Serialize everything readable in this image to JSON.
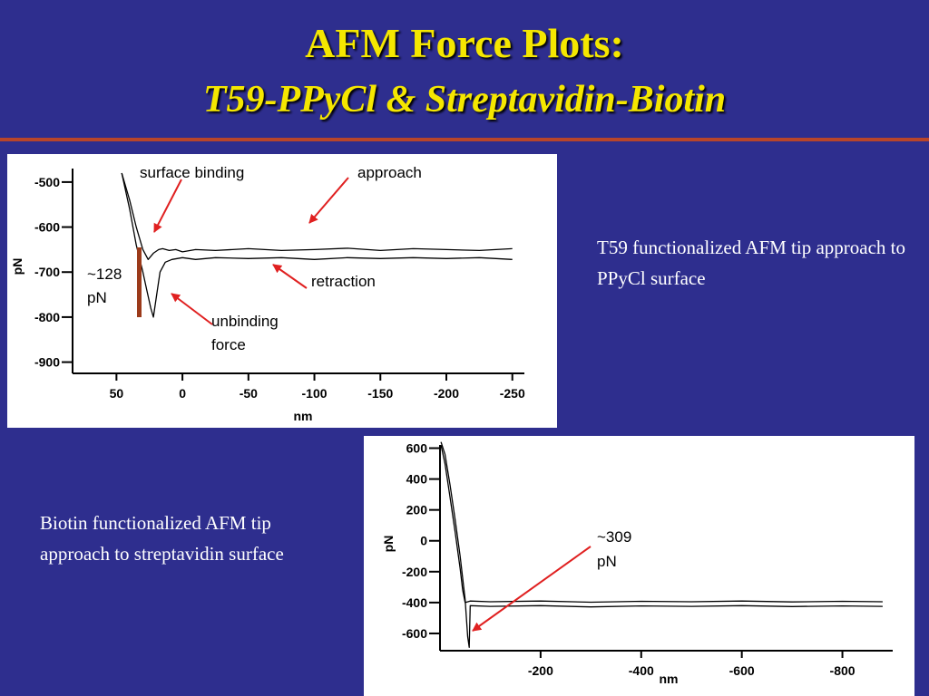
{
  "slide": {
    "title": "AFM Force Plots:",
    "subtitle": "T59-PPyCl & Streptavidin-Biotin"
  },
  "descriptions": {
    "top_right": "T59 functionalized AFM tip approach to PPyCl surface",
    "bottom_left": "Biotin functionalized AFM tip approach to streptavidin surface"
  },
  "colors": {
    "background": "#2e2e8e",
    "title": "#f5e700",
    "rule": "#b8452a",
    "arrow": "#e02020",
    "bracket": "#9b3a1a",
    "trace": "#000000"
  },
  "chart_data": [
    {
      "type": "line",
      "xlabel": "nm",
      "ylabel": "pN",
      "xlim": [
        75,
        -255
      ],
      "ylim": [
        -925,
        -470
      ],
      "x_ticks": [
        50,
        0,
        -50,
        -100,
        -150,
        -200,
        -250
      ],
      "x_tick_labels": [
        "50",
        "0",
        "-50",
        "-100",
        "-150",
        "-200",
        "-250"
      ],
      "y_ticks": [
        -500,
        -600,
        -700,
        -800,
        -900
      ],
      "y_tick_labels": [
        "-500",
        "-600",
        -700,
        "-800",
        "-900"
      ],
      "grid": false,
      "series": [
        {
          "x": [
            46,
            40,
            35,
            30,
            26,
            22,
            18,
            15,
            10,
            5,
            0,
            -10,
            -25,
            -50,
            -75,
            -100,
            -125,
            -150,
            -175,
            -200,
            -225,
            -250
          ],
          "y": [
            -480,
            -540,
            -600,
            -650,
            -672,
            -658,
            -650,
            -648,
            -652,
            -650,
            -655,
            -650,
            -652,
            -648,
            -652,
            -650,
            -647,
            -652,
            -648,
            -650,
            -652,
            -648
          ]
        },
        {
          "x": [
            46,
            40,
            35,
            30,
            27,
            24,
            22,
            20,
            17,
            13,
            8,
            0,
            -10,
            -25,
            -50,
            -75,
            -100,
            -125,
            -150,
            -175,
            -200,
            -225,
            -250
          ],
          "y": [
            -480,
            -560,
            -640,
            -700,
            -740,
            -780,
            -800,
            -760,
            -700,
            -678,
            -672,
            -668,
            -672,
            -668,
            -670,
            -668,
            -672,
            -668,
            -670,
            -668,
            -670,
            -668,
            -672
          ]
        }
      ],
      "annotations": [
        {
          "text": "surface binding"
        },
        {
          "text": "approach"
        },
        {
          "text": "retraction"
        },
        {
          "text": "unbinding"
        },
        {
          "text": "force"
        },
        {
          "text": "~128"
        },
        {
          "text": "pN"
        }
      ]
    },
    {
      "type": "line",
      "xlabel": "nm",
      "ylabel": "pN",
      "xlim": [
        0,
        -900
      ],
      "ylim": [
        -700,
        650
      ],
      "x_ticks": [
        -200,
        -400,
        -600,
        -800
      ],
      "x_tick_labels": [
        "-200",
        "-400",
        "-600",
        "-800"
      ],
      "y_ticks": [
        600,
        400,
        200,
        0,
        -200,
        -400,
        -600
      ],
      "y_tick_labels": [
        "600",
        "400",
        "200",
        "0",
        "-200",
        "-400",
        "-600"
      ],
      "grid": false,
      "series": [
        {
          "x": [
            -2,
            -10,
            -20,
            -30,
            -40,
            -45,
            -50,
            -60,
            -100,
            -200,
            -300,
            -400,
            -500,
            -600,
            -700,
            -800,
            -880
          ],
          "y": [
            620,
            500,
            280,
            60,
            -180,
            -320,
            -400,
            -390,
            -395,
            -390,
            -398,
            -392,
            -395,
            -390,
            -396,
            -392,
            -395
          ]
        },
        {
          "x": [
            -2,
            -10,
            -20,
            -30,
            -40,
            -50,
            -55,
            -58,
            -60,
            -100,
            -200,
            -300,
            -400,
            -500,
            -600,
            -700,
            -800,
            -880
          ],
          "y": [
            640,
            560,
            360,
            140,
            -100,
            -380,
            -620,
            -690,
            -420,
            -425,
            -420,
            -428,
            -422,
            -425,
            -420,
            -426,
            -422,
            -425
          ]
        }
      ],
      "annotations": [
        {
          "text": "~309"
        },
        {
          "text": "pN"
        }
      ]
    }
  ]
}
